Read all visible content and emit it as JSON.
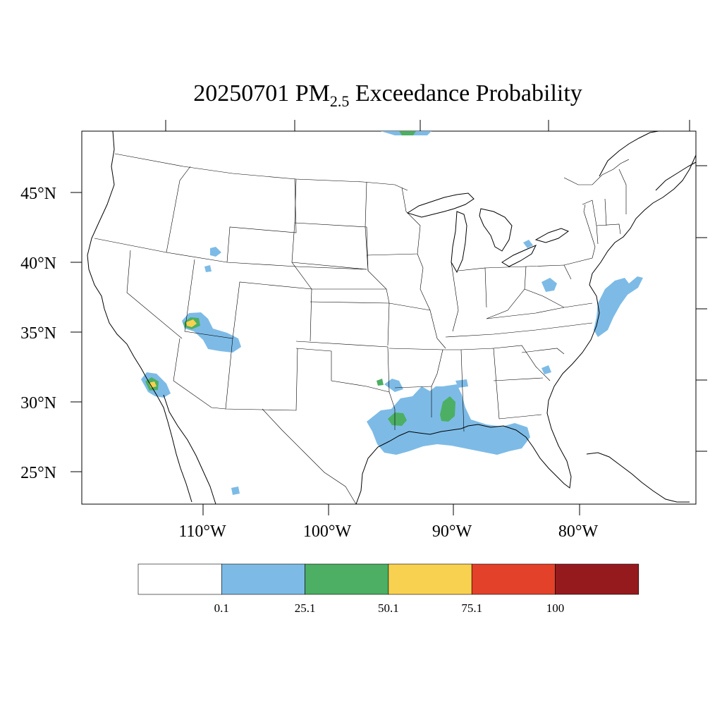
{
  "title": {
    "date": "20250701",
    "pm": "PM",
    "pm_sub": "2.5",
    "rest": "Exceedance Probability"
  },
  "axes": {
    "lon_labels": [
      "110°W",
      "100°W",
      "90°W",
      "80°W"
    ],
    "lat_labels": [
      "45°N",
      "40°N",
      "35°N",
      "30°N",
      "25°N"
    ]
  },
  "colorbar": {
    "colors": [
      "#ffffff",
      "#7dbbe6",
      "#4caf63",
      "#f9d150",
      "#e34129",
      "#951a1d"
    ],
    "labels": [
      "0.1",
      "25.1",
      "50.1",
      "75.1",
      "100"
    ]
  },
  "regions": [
    {
      "name": "US Gulf Coast (TX/LA/MS/AL/FL panhandle)",
      "level": "25.1"
    },
    {
      "name": "Southern Louisiana / Mississippi",
      "level": "50.1"
    },
    {
      "name": "Southern Utah / Northern Arizona",
      "level": "75.1"
    },
    {
      "name": "Southern Arizona",
      "level": "75.1"
    },
    {
      "name": "Mid-Atlantic coast (VA/NC)",
      "level": "25.1"
    }
  ]
}
